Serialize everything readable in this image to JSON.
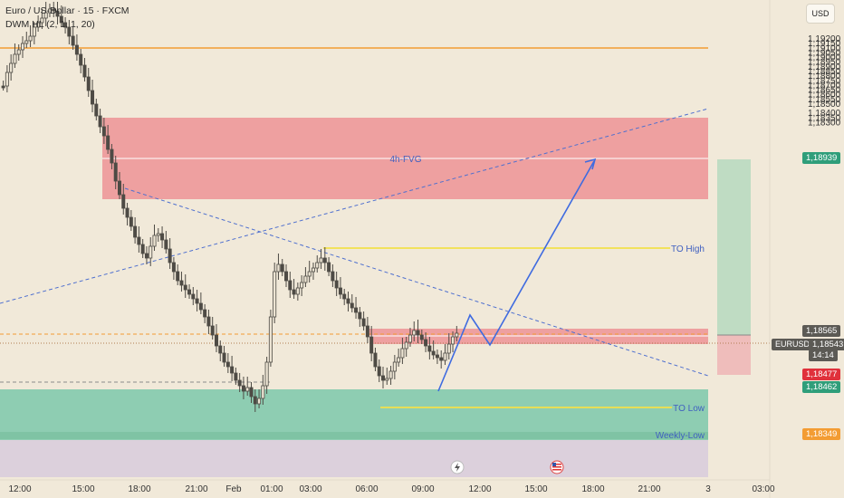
{
  "header": {
    "symbol_line": "Euro / US-Dollar · 15 · FXCM",
    "indicator_line": "DWM HL (2, 1, 1, 20)"
  },
  "currency_button": "USD",
  "price_axis": {
    "ticks": [
      "1,19200",
      "1,19150",
      "1,19100",
      "1,19050",
      "1,19000",
      "1,18950",
      "1,18900",
      "1,18850",
      "1,18800",
      "1,18750",
      "1,18700",
      "1,18650",
      "1,18600",
      "1,18550",
      "1,18500",
      "1,18400",
      "1,18350",
      "1,18300"
    ],
    "values": [
      1.192,
      1.1915,
      1.191,
      1.1905,
      1.19,
      1.1895,
      1.189,
      1.1885,
      1.188,
      1.1875,
      1.187,
      1.1865,
      1.186,
      1.1855,
      1.185,
      1.184,
      1.1835,
      1.183
    ]
  },
  "time_axis": {
    "labels": [
      "12:00",
      "15:00",
      "18:00",
      "21:00",
      "Feb",
      "01:00",
      "03:00",
      "06:00",
      "09:00",
      "12:00",
      "15:00",
      "18:00",
      "21:00",
      "3",
      "03:00"
    ]
  },
  "zones": {
    "fvg_label": "4h-FVG",
    "to_high_label": "TO High",
    "to_low_label": "TO Low",
    "weekly_low_label": "Weekly-Low"
  },
  "price_tags": {
    "target": "1,18939",
    "dotted": "1,18565",
    "symbol": "EURUSD",
    "last": "1,18543",
    "countdown": "14:14",
    "stop": "1,18477",
    "entry": "1,18462",
    "weekly_low": "1,18349"
  },
  "colors": {
    "background": "#f1e9d9",
    "bull_candle": "#ece4d3",
    "bear_candle": "#4e4b45",
    "fvg_zone": "#eea0a0",
    "demand_zone": "#8ecdb2",
    "weekly_zone": "#dcd0dc",
    "orange_line": "#f39c33",
    "trend_line": "#4f70cf",
    "projection": "#3f6be0",
    "to_high_line": "#f2e04a",
    "target_box": "#bfdcc3",
    "stop_box": "#efbdbb"
  },
  "icons": {
    "flash": "flash-event-icon",
    "flag": "us-flag-event-icon"
  }
}
